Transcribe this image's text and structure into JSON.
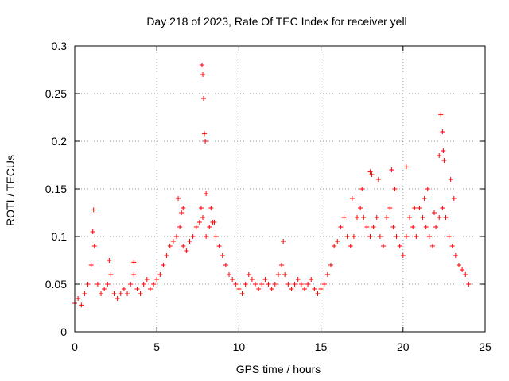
{
  "chart_data": {
    "type": "scatter",
    "title": "Day 218 of 2023, Rate Of TEC Index for receiver yell",
    "xlabel": "GPS time / hours",
    "ylabel": "ROTI / TECUs",
    "xlim": [
      0,
      25
    ],
    "ylim": [
      0,
      0.3
    ],
    "x_ticks": [
      0,
      5,
      10,
      15,
      20,
      25
    ],
    "y_ticks": [
      0,
      0.05,
      0.1,
      0.15,
      0.2,
      0.25,
      0.3
    ],
    "x_tick_labels": [
      "0",
      "5",
      "10",
      "15",
      "20",
      "25"
    ],
    "y_tick_labels": [
      "0",
      "0.05",
      "0.1",
      "0.15",
      "0.2",
      "0.25",
      "0.3"
    ],
    "grid": true,
    "marker": "+",
    "marker_color": "#ff0000",
    "series": [
      {
        "name": "ROTI",
        "x": [
          0.0,
          0.2,
          0.4,
          0.6,
          0.8,
          1.0,
          1.2,
          1.4,
          1.6,
          1.8,
          2.0,
          2.2,
          2.4,
          2.6,
          2.8,
          3.0,
          3.2,
          3.4,
          3.6,
          3.8,
          4.0,
          4.2,
          4.4,
          4.6,
          4.8,
          5.0,
          5.2,
          5.4,
          5.6,
          5.8,
          6.0,
          6.2,
          6.4,
          6.6,
          6.8,
          7.0,
          7.2,
          7.4,
          7.6,
          7.8,
          8.0,
          8.2,
          8.4,
          8.6,
          8.8,
          9.0,
          9.2,
          9.4,
          9.6,
          9.8,
          10.0,
          10.2,
          10.4,
          10.6,
          10.8,
          11.0,
          11.2,
          11.4,
          11.6,
          11.8,
          12.0,
          12.2,
          12.4,
          12.6,
          12.8,
          13.0,
          13.2,
          13.4,
          13.6,
          13.8,
          14.0,
          14.2,
          14.4,
          14.6,
          14.8,
          15.0,
          15.2,
          15.4,
          15.6,
          15.8,
          16.0,
          16.2,
          16.4,
          16.6,
          16.8,
          17.0,
          17.2,
          17.4,
          17.6,
          17.8,
          18.0,
          18.2,
          18.4,
          18.6,
          18.8,
          19.0,
          19.2,
          19.4,
          19.6,
          19.8,
          20.0,
          20.2,
          20.4,
          20.6,
          20.8,
          21.0,
          21.2,
          21.4,
          21.6,
          21.8,
          22.0,
          22.2,
          22.4,
          22.6,
          22.8,
          23.0,
          23.2,
          23.4,
          23.6,
          23.8,
          24.0,
          1.1,
          1.15,
          2.1,
          3.6,
          6.3,
          6.5,
          6.6,
          7.7,
          7.75,
          7.8,
          7.85,
          7.9,
          7.95,
          8.0,
          8.3,
          8.5,
          12.7,
          16.9,
          17.5,
          18.0,
          18.1,
          18.5,
          19.3,
          19.5,
          20.2,
          20.7,
          21.3,
          21.5,
          21.9,
          22.2,
          22.3,
          22.4,
          22.45,
          22.5,
          22.9,
          23.1
        ],
        "y": [
          0.03,
          0.035,
          0.028,
          0.04,
          0.05,
          0.07,
          0.09,
          0.05,
          0.04,
          0.045,
          0.05,
          0.06,
          0.04,
          0.035,
          0.04,
          0.045,
          0.04,
          0.05,
          0.06,
          0.045,
          0.04,
          0.05,
          0.055,
          0.045,
          0.05,
          0.055,
          0.06,
          0.07,
          0.08,
          0.09,
          0.095,
          0.1,
          0.11,
          0.09,
          0.085,
          0.095,
          0.1,
          0.11,
          0.115,
          0.12,
          0.1,
          0.11,
          0.115,
          0.1,
          0.09,
          0.08,
          0.07,
          0.06,
          0.055,
          0.05,
          0.045,
          0.04,
          0.05,
          0.06,
          0.055,
          0.05,
          0.045,
          0.05,
          0.055,
          0.05,
          0.045,
          0.05,
          0.06,
          0.07,
          0.06,
          0.05,
          0.045,
          0.05,
          0.055,
          0.05,
          0.045,
          0.05,
          0.055,
          0.045,
          0.04,
          0.045,
          0.05,
          0.06,
          0.07,
          0.09,
          0.095,
          0.11,
          0.12,
          0.1,
          0.09,
          0.1,
          0.12,
          0.13,
          0.12,
          0.11,
          0.1,
          0.11,
          0.12,
          0.1,
          0.09,
          0.12,
          0.13,
          0.11,
          0.1,
          0.09,
          0.08,
          0.1,
          0.12,
          0.11,
          0.1,
          0.13,
          0.12,
          0.11,
          0.1,
          0.09,
          0.11,
          0.12,
          0.13,
          0.12,
          0.1,
          0.09,
          0.08,
          0.07,
          0.065,
          0.06,
          0.05,
          0.105,
          0.128,
          0.075,
          0.073,
          0.14,
          0.125,
          0.13,
          0.13,
          0.28,
          0.27,
          0.245,
          0.208,
          0.2,
          0.145,
          0.13,
          0.115,
          0.095,
          0.14,
          0.15,
          0.168,
          0.165,
          0.16,
          0.17,
          0.15,
          0.173,
          0.13,
          0.14,
          0.15,
          0.125,
          0.185,
          0.228,
          0.21,
          0.19,
          0.18,
          0.16,
          0.14
        ]
      }
    ]
  }
}
